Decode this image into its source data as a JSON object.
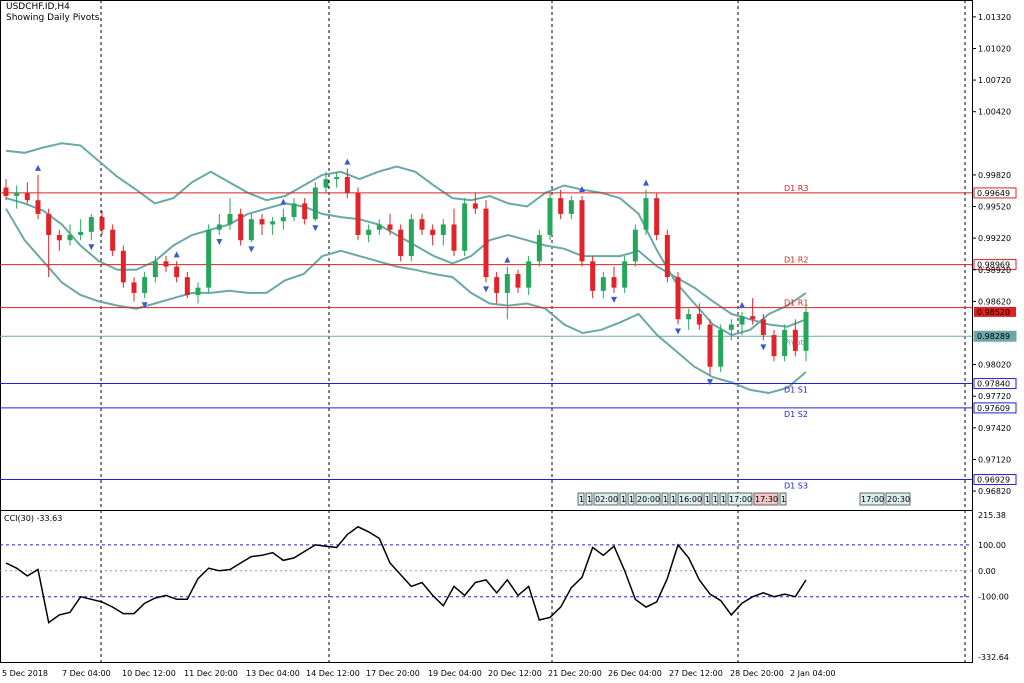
{
  "window": {
    "symbol_title": "USDCHF.ID,H4",
    "subtitle": "Showing Daily Pivots."
  },
  "price_axis": {
    "ticks": [
      "1.01320",
      "1.01020",
      "1.00720",
      "1.00420",
      "0.99820",
      "0.99520",
      "0.99220",
      "0.98920",
      "0.98620",
      "0.98020",
      "0.97720",
      "0.97420",
      "0.97120",
      "0.96820"
    ],
    "tick_values": [
      1.0132,
      1.0102,
      1.0072,
      1.0042,
      0.9982,
      0.9952,
      0.9922,
      0.9892,
      0.9862,
      0.9802,
      0.9772,
      0.9742,
      0.9712,
      0.9682
    ],
    "range": [
      0.9664,
      1.0148
    ],
    "current_price": "0.98520",
    "current_price_value": 0.9852
  },
  "pivots": [
    {
      "label": "D1 R3",
      "price": "0.99649",
      "value": 0.99649,
      "color": "#e02020"
    },
    {
      "label": "D1 R2",
      "price": "0.98969",
      "value": 0.98969,
      "color": "#e02020"
    },
    {
      "label": "D1 R1",
      "price": "",
      "value": 0.9856,
      "color": "#e02020"
    },
    {
      "label": "Pivot",
      "price": "0.98289",
      "value": 0.98289,
      "color": "#6aa8a8"
    },
    {
      "label": "D1 S1",
      "price": "0.97840",
      "value": 0.9784,
      "color": "#2020d0"
    },
    {
      "label": "D1 S2",
      "price": "0.97609",
      "value": 0.97609,
      "color": "#2020d0"
    },
    {
      "label": "D1 S3",
      "price": "0.96929",
      "value": 0.96929,
      "color": "#2020d0"
    }
  ],
  "time_axis": [
    "5 Dec 2018",
    "7 Dec 04:00",
    "10 Dec 12:00",
    "11 Dec 20:00",
    "13 Dec 04:00",
    "14 Dec 12:00",
    "17 Dec 20:00",
    "19 Dec 04:00",
    "20 Dec 12:00",
    "21 Dec 20:00",
    "26 Dec 04:00",
    "27 Dec 12:00",
    "28 Dec 20:00",
    "2 Jan 04:00"
  ],
  "time_markers": [
    "1",
    "1",
    "02:00",
    "1",
    "1",
    "20:00",
    "1",
    "1",
    "16:00",
    "1",
    "1",
    "1",
    "17:00",
    "17:30",
    "1",
    "17:00",
    "20:30"
  ],
  "indicator": {
    "label": "CCI(30) -33.63",
    "value": "-33.63",
    "ticks": [
      "215.38",
      "100.00",
      "0.00",
      "-100.00",
      "-332.64"
    ],
    "tick_values": [
      215.38,
      100,
      0,
      -100,
      -332.64
    ]
  },
  "colors": {
    "bull": "#26a65b",
    "bear": "#e0242a",
    "bands": "#6aa8a8",
    "grid": "#000000",
    "cci_line": "#000000",
    "cci_levels": "#2020d0"
  },
  "chart_data": {
    "type": "candlestick",
    "symbol": "USDCHF.ID",
    "timeframe": "H4",
    "candles": [
      [
        0.997,
        0.9978,
        0.9958,
        0.9962
      ],
      [
        0.9962,
        0.9972,
        0.995,
        0.9965
      ],
      [
        0.9965,
        0.9975,
        0.9955,
        0.9958
      ],
      [
        0.9958,
        0.9982,
        0.994,
        0.9945
      ],
      [
        0.9945,
        0.995,
        0.9885,
        0.9925
      ],
      [
        0.9925,
        0.993,
        0.991,
        0.992
      ],
      [
        0.992,
        0.9935,
        0.9915,
        0.9925
      ],
      [
        0.9925,
        0.994,
        0.992,
        0.9928
      ],
      [
        0.9928,
        0.9945,
        0.992,
        0.9942
      ],
      [
        0.9942,
        0.9948,
        0.9925,
        0.993
      ],
      [
        0.993,
        0.9935,
        0.9905,
        0.991
      ],
      [
        0.991,
        0.9915,
        0.9875,
        0.988
      ],
      [
        0.988,
        0.9885,
        0.9862,
        0.987
      ],
      [
        0.987,
        0.989,
        0.9865,
        0.9885
      ],
      [
        0.9885,
        0.9905,
        0.988,
        0.99
      ],
      [
        0.99,
        0.9905,
        0.989,
        0.9895
      ],
      [
        0.9895,
        0.99,
        0.988,
        0.9885
      ],
      [
        0.9885,
        0.989,
        0.9865,
        0.9868
      ],
      [
        0.9868,
        0.988,
        0.986,
        0.9875
      ],
      [
        0.9875,
        0.9935,
        0.987,
        0.993
      ],
      [
        0.993,
        0.9945,
        0.9925,
        0.9935
      ],
      [
        0.9935,
        0.996,
        0.993,
        0.9945
      ],
      [
        0.9945,
        0.995,
        0.9915,
        0.992
      ],
      [
        0.992,
        0.9945,
        0.9918,
        0.994
      ],
      [
        0.994,
        0.9945,
        0.9925,
        0.9935
      ],
      [
        0.9935,
        0.9942,
        0.9925,
        0.9938
      ],
      [
        0.9938,
        0.995,
        0.993,
        0.9942
      ],
      [
        0.9942,
        0.996,
        0.9938,
        0.9955
      ],
      [
        0.9955,
        0.996,
        0.9935,
        0.994
      ],
      [
        0.994,
        0.9975,
        0.9938,
        0.997
      ],
      [
        0.997,
        0.9985,
        0.9965,
        0.9978
      ],
      [
        0.9978,
        0.9985,
        0.997,
        0.998
      ],
      [
        0.998,
        0.9988,
        0.996,
        0.9965
      ],
      [
        0.9965,
        0.997,
        0.992,
        0.9925
      ],
      [
        0.9925,
        0.9935,
        0.9918,
        0.993
      ],
      [
        0.993,
        0.994,
        0.9925,
        0.9935
      ],
      [
        0.9935,
        0.9945,
        0.9925,
        0.993
      ],
      [
        0.993,
        0.9935,
        0.99,
        0.9905
      ],
      [
        0.9905,
        0.9945,
        0.99,
        0.994
      ],
      [
        0.994,
        0.9945,
        0.9925,
        0.993
      ],
      [
        0.993,
        0.9935,
        0.9915,
        0.9925
      ],
      [
        0.9925,
        0.994,
        0.9915,
        0.9935
      ],
      [
        0.9935,
        0.995,
        0.9905,
        0.991
      ],
      [
        0.991,
        0.996,
        0.9905,
        0.9955
      ],
      [
        0.9955,
        0.9965,
        0.9945,
        0.995
      ],
      [
        0.995,
        0.9958,
        0.988,
        0.9885
      ],
      [
        0.9885,
        0.989,
        0.986,
        0.987
      ],
      [
        0.987,
        0.9895,
        0.9845,
        0.9888
      ],
      [
        0.9888,
        0.9892,
        0.987,
        0.9875
      ],
      [
        0.9875,
        0.9905,
        0.9868,
        0.99
      ],
      [
        0.99,
        0.993,
        0.9895,
        0.9925
      ],
      [
        0.9925,
        0.9965,
        0.992,
        0.996
      ],
      [
        0.996,
        0.9968,
        0.994,
        0.9945
      ],
      [
        0.9945,
        0.9962,
        0.994,
        0.9958
      ],
      [
        0.9958,
        0.9962,
        0.9895,
        0.99
      ],
      [
        0.99,
        0.9905,
        0.9865,
        0.9872
      ],
      [
        0.9872,
        0.989,
        0.9865,
        0.9885
      ],
      [
        0.9885,
        0.9895,
        0.987,
        0.9875
      ],
      [
        0.9875,
        0.9905,
        0.987,
        0.99
      ],
      [
        0.99,
        0.9935,
        0.9895,
        0.993
      ],
      [
        0.993,
        0.9968,
        0.9925,
        0.996
      ],
      [
        0.996,
        0.9965,
        0.992,
        0.9925
      ],
      [
        0.9925,
        0.993,
        0.988,
        0.9885
      ],
      [
        0.9885,
        0.989,
        0.984,
        0.9845
      ],
      [
        0.9845,
        0.9855,
        0.9835,
        0.985
      ],
      [
        0.985,
        0.986,
        0.9835,
        0.984
      ],
      [
        0.984,
        0.9845,
        0.9792,
        0.98
      ],
      [
        0.98,
        0.984,
        0.9795,
        0.9835
      ],
      [
        0.9835,
        0.9845,
        0.9825,
        0.984
      ],
      [
        0.984,
        0.9852,
        0.983,
        0.9848
      ],
      [
        0.9848,
        0.9865,
        0.984,
        0.9845
      ],
      [
        0.9845,
        0.985,
        0.9825,
        0.983
      ],
      [
        0.983,
        0.9835,
        0.9805,
        0.981
      ],
      [
        0.981,
        0.984,
        0.9805,
        0.9835
      ],
      [
        0.9835,
        0.9845,
        0.981,
        0.9815
      ],
      [
        0.9815,
        0.9862,
        0.9805,
        0.9852
      ]
    ],
    "bollinger_upper": [
      1.0005,
      1.0003,
      1.0008,
      1.0012,
      1.001,
      0.9995,
      0.998,
      0.9968,
      0.9955,
      0.996,
      0.9975,
      0.9985,
      0.9975,
      0.9965,
      0.9958,
      0.9962,
      0.9972,
      0.9982,
      0.9985,
      0.9978,
      0.9985,
      0.999,
      0.9985,
      0.9972,
      0.996,
      0.9958,
      0.9962,
      0.9955,
      0.9952,
      0.9965,
      0.9972,
      0.9968,
      0.9965,
      0.996,
      0.9945,
      0.991,
      0.988,
      0.986,
      0.984,
      0.983,
      0.9835,
      0.985,
      0.9858,
      0.987
    ],
    "bollinger_middle": [
      0.996,
      0.9955,
      0.9948,
      0.9935,
      0.9915,
      0.99,
      0.9892,
      0.9892,
      0.99,
      0.9915,
      0.9925,
      0.993,
      0.9935,
      0.9945,
      0.995,
      0.9955,
      0.9952,
      0.9945,
      0.9942,
      0.994,
      0.9935,
      0.9925,
      0.9915,
      0.9905,
      0.9898,
      0.9905,
      0.992,
      0.9925,
      0.992,
      0.9915,
      0.9912,
      0.9905,
      0.9905,
      0.9905,
      0.991,
      0.9895,
      0.9885,
      0.9875,
      0.9862,
      0.985,
      0.9845,
      0.984,
      0.9838,
      0.9845
    ],
    "bollinger_lower": [
      0.995,
      0.992,
      0.99,
      0.988,
      0.9868,
      0.9862,
      0.9858,
      0.9855,
      0.986,
      0.9865,
      0.987,
      0.987,
      0.9872,
      0.987,
      0.987,
      0.9882,
      0.9888,
      0.9905,
      0.991,
      0.9905,
      0.99,
      0.9895,
      0.9892,
      0.9888,
      0.9885,
      0.987,
      0.986,
      0.9858,
      0.986,
      0.9855,
      0.984,
      0.9832,
      0.9835,
      0.9842,
      0.985,
      0.983,
      0.9815,
      0.98,
      0.979,
      0.9785,
      0.9778,
      0.9775,
      0.978,
      0.9795
    ],
    "cci_values": [
      30,
      10,
      -20,
      5,
      -200,
      -170,
      -160,
      -100,
      -110,
      -120,
      -140,
      -165,
      -165,
      -125,
      -105,
      -95,
      -110,
      -110,
      -30,
      10,
      0,
      5,
      30,
      55,
      60,
      70,
      40,
      50,
      75,
      100,
      95,
      90,
      140,
      170,
      150,
      125,
      30,
      -15,
      -60,
      -45,
      -95,
      -135,
      -60,
      -95,
      -45,
      -35,
      -85,
      -35,
      -95,
      -60,
      -190,
      -180,
      -140,
      -65,
      -25,
      90,
      60,
      95,
      0,
      -110,
      -140,
      -120,
      -30,
      100,
      50,
      -35,
      -90,
      -115,
      -170,
      -125,
      -100,
      -85,
      -100,
      -90,
      -100,
      -35
    ]
  }
}
